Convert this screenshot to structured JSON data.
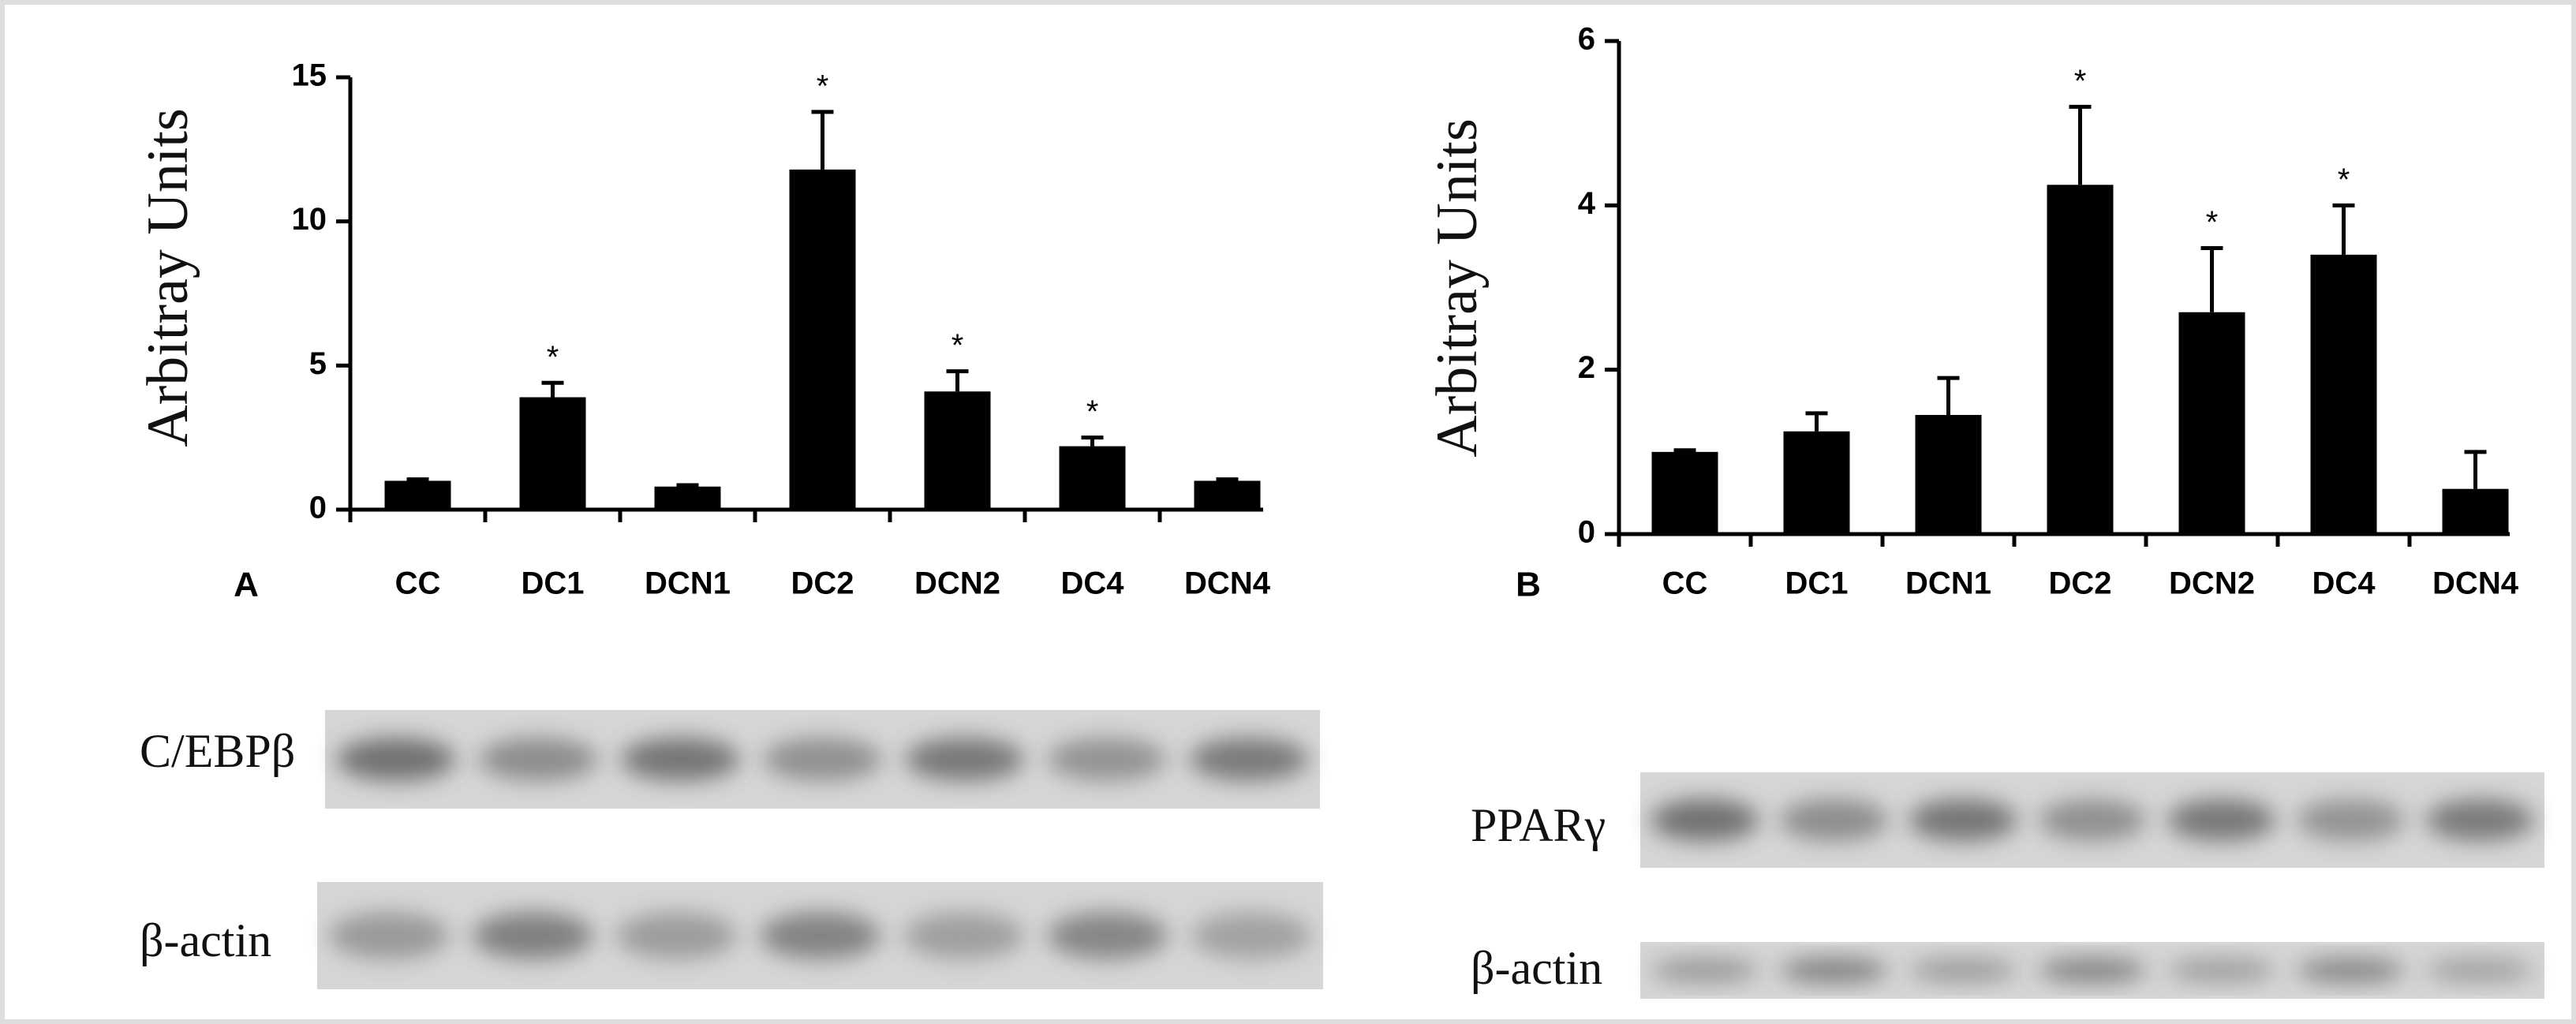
{
  "chart_data": [
    {
      "type": "bar",
      "panel_label": "A",
      "y_label": "Arbitray Units",
      "categories": [
        "CC",
        "DC1",
        "DCN1",
        "DC2",
        "DCN2",
        "DC4",
        "DCN4"
      ],
      "values": [
        1.0,
        3.9,
        0.8,
        11.8,
        4.1,
        2.2,
        1.0
      ],
      "errors": [
        0.05,
        0.5,
        0.05,
        2.0,
        0.7,
        0.3,
        0.05
      ],
      "significance": [
        null,
        "*",
        null,
        "*",
        "*",
        "*",
        null
      ],
      "color": "#000000",
      "ylim": [
        0,
        15
      ],
      "yticks": [
        0,
        5,
        10,
        15
      ],
      "blot_labels": [
        "C/EBPβ",
        "β-actin"
      ]
    },
    {
      "type": "bar",
      "panel_label": "B",
      "y_label": "Arbitray Units",
      "categories": [
        "CC",
        "DC1",
        "DCN1",
        "DC2",
        "DCN2",
        "DC4",
        "DCN4"
      ],
      "values": [
        1.0,
        1.25,
        1.45,
        4.25,
        2.7,
        3.4,
        0.55
      ],
      "errors": [
        0.02,
        0.22,
        0.45,
        0.95,
        0.78,
        0.6,
        0.45
      ],
      "significance": [
        null,
        null,
        null,
        "*",
        "*",
        "*",
        null
      ],
      "color": "#000000",
      "ylim": [
        0,
        6
      ],
      "yticks": [
        0,
        2,
        4,
        6
      ],
      "blot_labels": [
        "PPARγ",
        "β-actin"
      ]
    }
  ]
}
